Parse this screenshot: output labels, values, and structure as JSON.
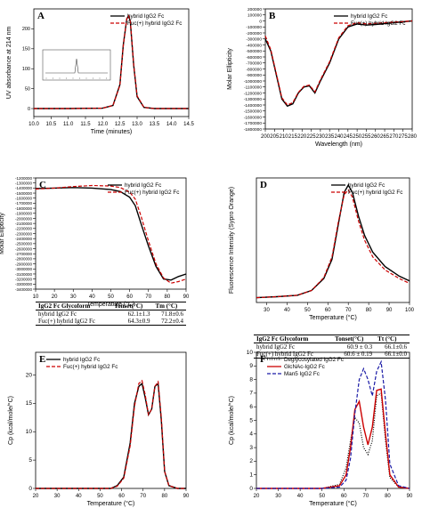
{
  "chart_data": [
    {
      "panel": "A",
      "type": "line",
      "xlabel": "Time (minutes)",
      "ylabel": "UV absorbance at 214 nm",
      "xlim": [
        10.0,
        14.5
      ],
      "ylim": [
        -20,
        250
      ],
      "xticks": [
        "10.0",
        "10.5",
        "11.0",
        "11.5",
        "12.0",
        "12.5",
        "13.0",
        "13.5",
        "14.0",
        "14.5"
      ],
      "yticks": [
        "0",
        "50",
        "100",
        "150",
        "200"
      ],
      "legend_position": "top-right",
      "inset": "small overview chromatogram with a single peak",
      "series": [
        {
          "name": "hybrid IgG2 Fc",
          "style": "solid",
          "color": "#000000",
          "x": [
            10.0,
            11.0,
            12.0,
            12.3,
            12.5,
            12.6,
            12.7,
            12.75,
            12.8,
            12.9,
            13.0,
            13.2,
            13.5,
            14.0,
            14.5
          ],
          "y": [
            0,
            0,
            1,
            8,
            60,
            160,
            225,
            232,
            220,
            110,
            30,
            3,
            0,
            0,
            0
          ]
        },
        {
          "name": "Fuc(+) hybrid IgG2 Fc",
          "style": "dashed",
          "color": "#cc0000",
          "x": [
            10.0,
            11.0,
            12.0,
            12.3,
            12.5,
            12.6,
            12.7,
            12.75,
            12.8,
            12.9,
            13.0,
            13.2,
            13.5,
            14.0,
            14.5
          ],
          "y": [
            0,
            0,
            1,
            8,
            58,
            158,
            226,
            233,
            222,
            112,
            32,
            3,
            0,
            0,
            0
          ]
        }
      ]
    },
    {
      "panel": "B",
      "type": "line",
      "xlabel": "Wavelength (nm)",
      "ylabel": "Molar Ellipticity",
      "xlim": [
        200,
        280
      ],
      "ylim": [
        -1800000,
        200000
      ],
      "xticks": [
        "200",
        "205",
        "210",
        "215",
        "220",
        "225",
        "230",
        "235",
        "240",
        "245",
        "250",
        "255",
        "260",
        "265",
        "270",
        "275",
        "280"
      ],
      "yticks": [
        "200000",
        "100000",
        "0",
        "-100000",
        "-200000",
        "-300000",
        "-400000",
        "-500000",
        "-600000",
        "-700000",
        "-800000",
        "-900000",
        "-1000000",
        "-1100000",
        "-1200000",
        "-1300000",
        "-1400000",
        "-1500000",
        "-1600000",
        "-1700000",
        "-1800000"
      ],
      "legend_position": "top-right",
      "series": [
        {
          "name": "hybrid IgG2 Fc",
          "style": "solid",
          "color": "#000000",
          "x": [
            200,
            203,
            206,
            209,
            212,
            215,
            218,
            221,
            224,
            227,
            230,
            235,
            240,
            245,
            250,
            255,
            260,
            270,
            280
          ],
          "y": [
            -300000,
            -500000,
            -900000,
            -1300000,
            -1420000,
            -1380000,
            -1200000,
            -1100000,
            -1080000,
            -1200000,
            -1000000,
            -700000,
            -300000,
            -100000,
            -50000,
            -70000,
            -60000,
            -30000,
            0
          ]
        },
        {
          "name": "Fuc(+) hybrid IgG2 Fc",
          "style": "dashed",
          "color": "#cc0000",
          "x": [
            200,
            203,
            206,
            209,
            212,
            215,
            218,
            221,
            224,
            227,
            230,
            235,
            240,
            245,
            250,
            255,
            260,
            270,
            280
          ],
          "y": [
            -250000,
            -480000,
            -880000,
            -1280000,
            -1400000,
            -1360000,
            -1190000,
            -1090000,
            -1070000,
            -1180000,
            -980000,
            -680000,
            -280000,
            -80000,
            -30000,
            -50000,
            -40000,
            -20000,
            0
          ]
        }
      ]
    },
    {
      "panel": "C",
      "type": "line",
      "xlabel": "Temperature (°C)",
      "ylabel": "Molar Ellipticity",
      "xlim": [
        10,
        90
      ],
      "ylim": [
        -3400000,
        -1200000
      ],
      "xticks": [
        "10",
        "20",
        "30",
        "40",
        "50",
        "60",
        "70",
        "80",
        "90"
      ],
      "yticks": [
        "-1200000",
        "-1300000",
        "-1400000",
        "-1500000",
        "-1600000",
        "-1700000",
        "-1800000",
        "-1900000",
        "-2000000",
        "-2100000",
        "-2200000",
        "-2300000",
        "-2400000",
        "-2500000",
        "-2600000",
        "-2700000",
        "-2800000",
        "-2900000",
        "-3000000",
        "-3100000",
        "-3200000",
        "-3300000",
        "-3400000"
      ],
      "legend_position": "top-right",
      "series": [
        {
          "name": "hybrid IgG2 Fc",
          "style": "solid",
          "color": "#000000",
          "x": [
            10,
            20,
            30,
            40,
            50,
            55,
            60,
            63,
            66,
            70,
            74,
            78,
            82,
            86,
            90
          ],
          "y": [
            -1410000,
            -1400000,
            -1390000,
            -1400000,
            -1430000,
            -1470000,
            -1580000,
            -1750000,
            -2100000,
            -2550000,
            -2950000,
            -3200000,
            -3220000,
            -3150000,
            -3100000
          ]
        },
        {
          "name": "Fuc(+) hybrid IgG2 Fc",
          "style": "dashed",
          "color": "#cc0000",
          "x": [
            10,
            20,
            30,
            40,
            50,
            55,
            60,
            63,
            66,
            70,
            74,
            78,
            82,
            86,
            90
          ],
          "y": [
            -1420000,
            -1400000,
            -1370000,
            -1350000,
            -1360000,
            -1390000,
            -1480000,
            -1620000,
            -1950000,
            -2450000,
            -2900000,
            -3180000,
            -3280000,
            -3250000,
            -3200000
          ]
        }
      ]
    },
    {
      "panel": "D",
      "type": "line",
      "xlabel": "Temperature (°C)",
      "ylabel": "Fluorescence Intensity (Sypro Orange)",
      "xlim": [
        25,
        100
      ],
      "ylim": [
        0,
        2.6
      ],
      "xticks": [
        "30",
        "40",
        "50",
        "60",
        "70",
        "80",
        "90",
        "100"
      ],
      "legend_position": "top-right",
      "series": [
        {
          "name": "hybrid IgG2 Fc",
          "style": "solid",
          "color": "#000000",
          "x": [
            25,
            35,
            45,
            52,
            58,
            62,
            65,
            68,
            70,
            72,
            75,
            78,
            82,
            88,
            95,
            100
          ],
          "y": [
            0.1,
            0.12,
            0.15,
            0.25,
            0.5,
            0.9,
            1.6,
            2.3,
            2.45,
            2.3,
            1.8,
            1.4,
            1.05,
            0.75,
            0.55,
            0.45
          ]
        },
        {
          "name": "Fuc(+) hybrid IgG2 Fc",
          "style": "dashed",
          "color": "#cc0000",
          "x": [
            25,
            35,
            45,
            52,
            58,
            62,
            65,
            68,
            70,
            72,
            75,
            78,
            82,
            88,
            95,
            100
          ],
          "y": [
            0.1,
            0.12,
            0.15,
            0.25,
            0.52,
            0.95,
            1.65,
            2.25,
            2.35,
            2.2,
            1.7,
            1.3,
            0.95,
            0.68,
            0.5,
            0.4
          ]
        }
      ]
    },
    {
      "panel": "E",
      "type": "line",
      "xlabel": "Temperature (°C)",
      "ylabel": "Cp (kcal/mole/°C)",
      "xlim": [
        20,
        90
      ],
      "ylim": [
        0,
        24
      ],
      "xticks": [
        "20",
        "30",
        "40",
        "50",
        "60",
        "70",
        "80",
        "90"
      ],
      "yticks": [
        "0",
        "5",
        "10",
        "15",
        "20"
      ],
      "legend_position": "top-left",
      "series": [
        {
          "name": "hybrid IgG2 Fc",
          "style": "solid",
          "color": "#000000",
          "x": [
            20,
            40,
            55,
            58,
            61,
            64,
            66,
            68,
            69.5,
            71,
            72.5,
            74,
            75.5,
            77,
            78.5,
            80,
            82,
            86,
            90
          ],
          "y": [
            0,
            0,
            0,
            0.5,
            2,
            8,
            15,
            18,
            18.5,
            16,
            13,
            14,
            18,
            18.5,
            12,
            3,
            0.5,
            0,
            0
          ]
        },
        {
          "name": "Fuc(+) hybrid IgG2 Fc",
          "style": "dashed",
          "color": "#cc0000",
          "x": [
            20,
            40,
            55,
            58,
            61,
            64,
            66,
            68,
            69.5,
            71,
            72.5,
            74,
            75.5,
            77,
            78.5,
            80,
            82,
            86,
            90
          ],
          "y": [
            0,
            0,
            0,
            0.4,
            1.8,
            7.5,
            14.5,
            18.5,
            19,
            16.5,
            13,
            14,
            18,
            18.8,
            12.5,
            3,
            0.5,
            0,
            0
          ]
        }
      ]
    },
    {
      "panel": "F",
      "type": "line",
      "xlabel": "Temperature (°C)",
      "ylabel": "Cp (kcal/mole/°C)",
      "xlim": [
        20,
        90
      ],
      "ylim": [
        0,
        10
      ],
      "xticks": [
        "20",
        "30",
        "40",
        "50",
        "60",
        "70",
        "80",
        "90"
      ],
      "yticks": [
        "0",
        "1",
        "2",
        "3",
        "4",
        "5",
        "6",
        "7",
        "8",
        "9",
        "10"
      ],
      "legend_position": "top-left",
      "series": [
        {
          "name": "Deglycosylated IgG2 Fc",
          "style": "dotted",
          "color": "#000000",
          "x": [
            20,
            50,
            58,
            61,
            63,
            65,
            67,
            69,
            71,
            73,
            75,
            77,
            79,
            81,
            85,
            90
          ],
          "y": [
            0,
            0,
            0.3,
            1.5,
            3.5,
            5.2,
            4.8,
            3.0,
            2.5,
            3.5,
            6.8,
            7.0,
            3.5,
            0.8,
            0.1,
            0
          ]
        },
        {
          "name": "GlcNAc-IgG2 Fc",
          "style": "solid",
          "color": "#cc0000",
          "x": [
            20,
            50,
            58,
            61,
            63,
            65,
            67,
            69,
            71,
            73,
            75,
            77,
            79,
            81,
            85,
            90
          ],
          "y": [
            0,
            0,
            0.2,
            1.0,
            3.0,
            5.8,
            6.4,
            4.5,
            3.2,
            4.5,
            7.2,
            7.3,
            4.0,
            1.0,
            0.1,
            0
          ]
        },
        {
          "name": "Man5 IgG2 Fc",
          "style": "dashed",
          "color": "#1a1aa6",
          "x": [
            20,
            50,
            58,
            61,
            63,
            65,
            67,
            69,
            71,
            73,
            75,
            77,
            79,
            81,
            85,
            90
          ],
          "y": [
            0,
            0,
            0.1,
            0.6,
            2.2,
            5.5,
            8.0,
            8.8,
            8.0,
            6.8,
            8.6,
            9.3,
            6.5,
            1.8,
            0.2,
            0
          ]
        }
      ]
    }
  ],
  "tables": {
    "C": {
      "headers": [
        "IgG2 Fc Glycoform",
        "Tonset(°C)",
        "Tm (°C)"
      ],
      "rows": [
        [
          "hybrid IgG2 Fc",
          "62.1±1.3",
          "71.8±0.6"
        ],
        [
          "Fuc(+) hybrid IgG2 Fc",
          "64.3±0.9",
          "72.2±0.4"
        ]
      ]
    },
    "D": {
      "headers": [
        "IgG2 Fc Glycoform",
        "Tonset(°C)",
        "Tt (°C)"
      ],
      "rows": [
        [
          "hybrid IgG2 Fc",
          "60.9 ± 0.3",
          "66.1±0.6"
        ],
        [
          "Fuc(+) hybrid IgG2 Fc",
          "60.6 ± 0.19",
          "66.1±0.0"
        ]
      ]
    }
  }
}
